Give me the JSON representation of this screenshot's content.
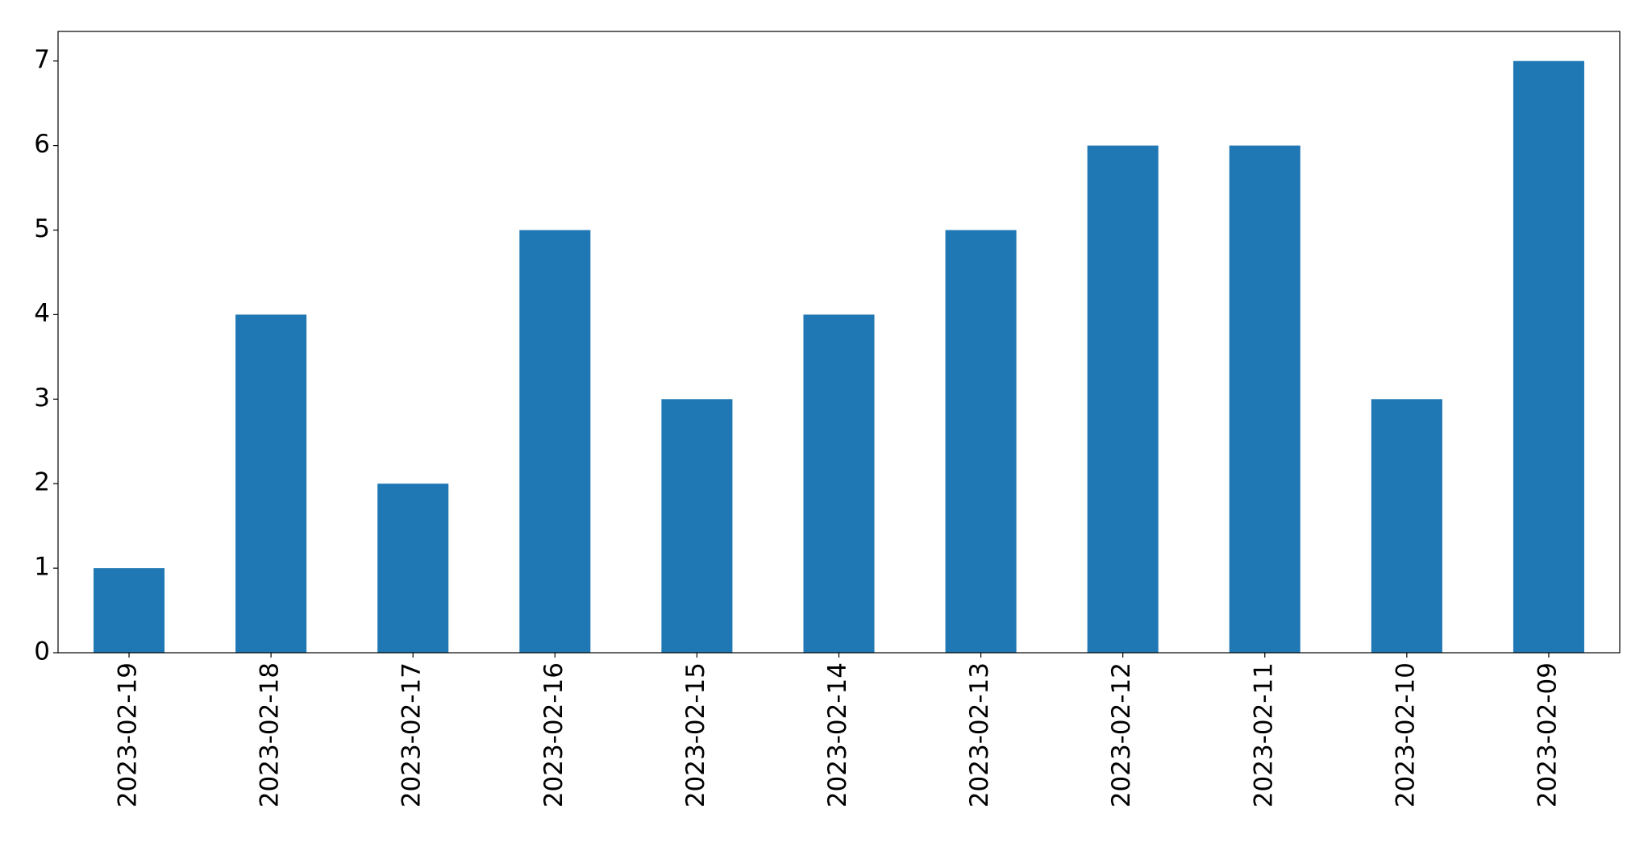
{
  "chart_data": {
    "type": "bar",
    "categories": [
      "2023-02-19",
      "2023-02-18",
      "2023-02-17",
      "2023-02-16",
      "2023-02-15",
      "2023-02-14",
      "2023-02-13",
      "2023-02-12",
      "2023-02-11",
      "2023-02-10",
      "2023-02-09"
    ],
    "values": [
      1,
      4,
      2,
      5,
      3,
      4,
      5,
      6,
      6,
      3,
      7
    ],
    "color": "#1f77b4",
    "ylim": [
      0,
      7.35
    ],
    "yticks": [
      0,
      1,
      2,
      3,
      4,
      5,
      6,
      7
    ],
    "grid": false
  }
}
